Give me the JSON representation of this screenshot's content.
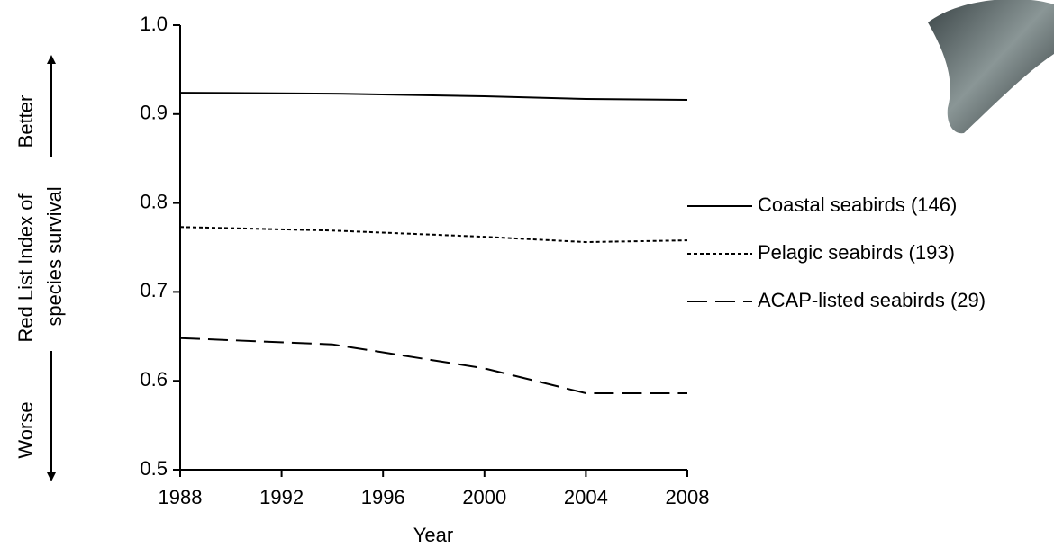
{
  "chart_data": {
    "type": "line",
    "x_label": "Year",
    "y_label": [
      "Red List Index of",
      "species survival"
    ],
    "annotations": {
      "better": "Better",
      "worse": "Worse"
    },
    "x": [
      1988,
      1994,
      2000,
      2004,
      2008
    ],
    "series": [
      {
        "name": "Coastal seabirds (146)",
        "color": "#000000",
        "linestyle": "solid",
        "values": [
          0.924,
          0.923,
          0.92,
          0.917,
          0.916
        ]
      },
      {
        "name": "Pelagic seabirds (193)",
        "color": "#000000",
        "linestyle": "dotted",
        "values": [
          0.773,
          0.769,
          0.762,
          0.756,
          0.758
        ]
      },
      {
        "name": "ACAP-listed seabirds (29)",
        "color": "#000000",
        "linestyle": "dashed",
        "values": [
          0.648,
          0.641,
          0.614,
          0.586,
          0.586
        ]
      }
    ],
    "xlim": [
      1988,
      2008
    ],
    "xticks": [
      1988,
      1992,
      1996,
      2000,
      2004,
      2008
    ],
    "ylim": [
      0.5,
      1
    ],
    "yticks": [
      0.5,
      0.6,
      0.7,
      0.8,
      0.9,
      {
        "value": 1,
        "label": "1.0"
      }
    ],
    "grid": false,
    "legend": "right"
  }
}
